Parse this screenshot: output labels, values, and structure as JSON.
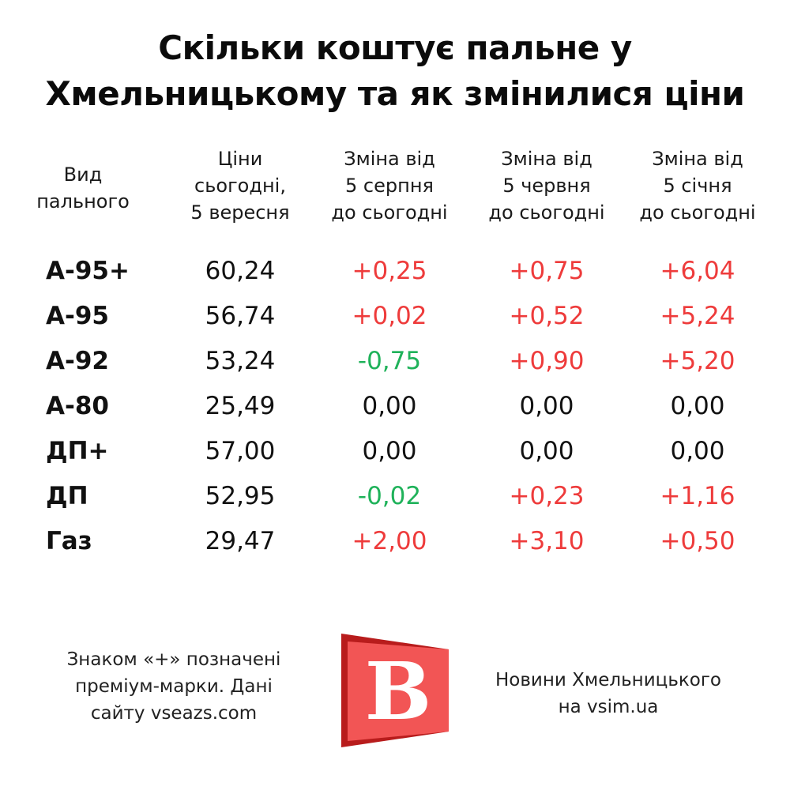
{
  "title_lines": [
    "Скільки коштує пальне у",
    "Хмельницькому та як змінилися ціни"
  ],
  "colors": {
    "positive": "#ee3b3b",
    "negative": "#1fb25a",
    "zero": "#111111",
    "logo_red": "#f25555",
    "logo_dark": "#b81c1c"
  },
  "chart_data": {
    "type": "table",
    "columns": [
      {
        "lines": [
          "Вид",
          "пального"
        ]
      },
      {
        "lines": [
          "Ціни",
          "сьогодні,",
          "5 вересня"
        ]
      },
      {
        "lines": [
          "Зміна від",
          "5 серпня",
          "до сьогодні"
        ]
      },
      {
        "lines": [
          "Зміна від",
          "5 червня",
          "до сьогодні"
        ]
      },
      {
        "lines": [
          "Зміна від",
          "5 січня",
          "до сьогодні"
        ]
      }
    ],
    "rows": [
      {
        "fuel": "А-95+",
        "price": "60,24",
        "changes": [
          "+0,25",
          "+0,75",
          "+6,04"
        ]
      },
      {
        "fuel": "А-95",
        "price": "56,74",
        "changes": [
          "+0,02",
          "+0,52",
          "+5,24"
        ]
      },
      {
        "fuel": "А-92",
        "price": "53,24",
        "changes": [
          "-0,75",
          "+0,90",
          "+5,20"
        ]
      },
      {
        "fuel": "А-80",
        "price": "25,49",
        "changes": [
          "0,00",
          "0,00",
          "0,00"
        ]
      },
      {
        "fuel": "ДП+",
        "price": "57,00",
        "changes": [
          "0,00",
          "0,00",
          "0,00"
        ]
      },
      {
        "fuel": "ДП",
        "price": "52,95",
        "changes": [
          "-0,02",
          "+0,23",
          "+1,16"
        ]
      },
      {
        "fuel": "Газ",
        "price": "29,47",
        "changes": [
          "+2,00",
          "+3,10",
          "+0,50"
        ]
      }
    ]
  },
  "footer": {
    "note_lines": [
      "Знаком «+» позначені",
      "преміум-марки. Дані",
      "сайту vseazs.com"
    ],
    "logo_letter": "B",
    "brand_lines": [
      "Новини Хмельницького",
      "на vsim.ua"
    ]
  }
}
